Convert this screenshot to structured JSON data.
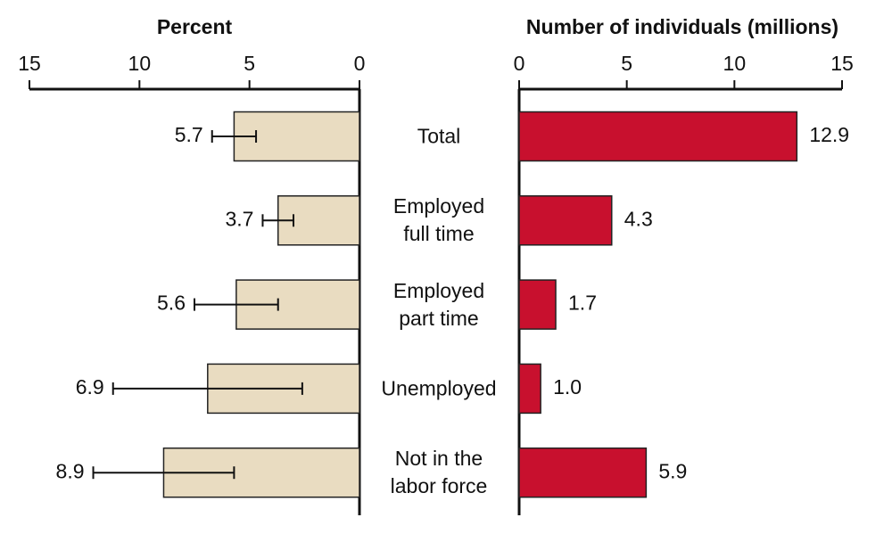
{
  "chart_data": [
    {
      "type": "bar",
      "orientation": "horizontal",
      "axis_reversed": true,
      "title": "Percent",
      "categories": [
        "Total",
        "Employed full time",
        "Employed part time",
        "Unemployed",
        "Not in the labor force"
      ],
      "values": [
        5.7,
        3.7,
        5.6,
        6.9,
        8.9
      ],
      "errors": [
        1.0,
        0.7,
        1.9,
        4.3,
        3.2
      ],
      "color": "#e9dcc1",
      "xlim": [
        0,
        15
      ],
      "xticks": [
        0,
        5,
        10,
        15
      ]
    },
    {
      "type": "bar",
      "orientation": "horizontal",
      "title": "Number of individuals (millions)",
      "values": [
        12.9,
        4.3,
        1.7,
        1.0,
        5.9
      ],
      "value_labels": [
        "12.9",
        "4.3",
        "1.7",
        "1.0",
        "5.9"
      ],
      "color": "#c8102e",
      "xlim": [
        0,
        15
      ],
      "xticks": [
        0,
        5,
        10,
        15
      ]
    }
  ]
}
